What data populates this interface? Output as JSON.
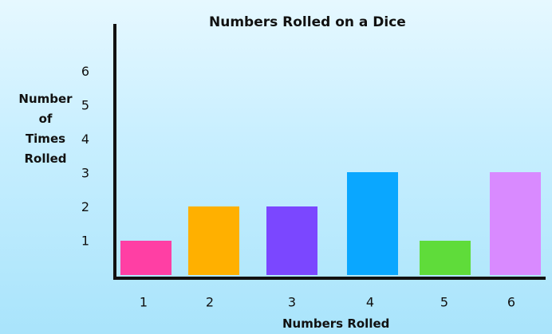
{
  "chart_data": {
    "type": "bar",
    "title": "Numbers Rolled on a Dice",
    "xlabel": "Numbers Rolled",
    "ylabel_lines": [
      "Number",
      "of",
      "Times",
      "Rolled"
    ],
    "categories": [
      "1",
      "2",
      "3",
      "4",
      "5",
      "6"
    ],
    "values": [
      1,
      2,
      2,
      3,
      1,
      3
    ],
    "colors": [
      "#ff3fa4",
      "#ffb000",
      "#7b47ff",
      "#0aa7ff",
      "#5fdc3a",
      "#d98aff"
    ],
    "ylim": [
      0,
      6
    ],
    "yticks": [
      "1",
      "2",
      "3",
      "4",
      "5",
      "6"
    ],
    "grid": false
  }
}
